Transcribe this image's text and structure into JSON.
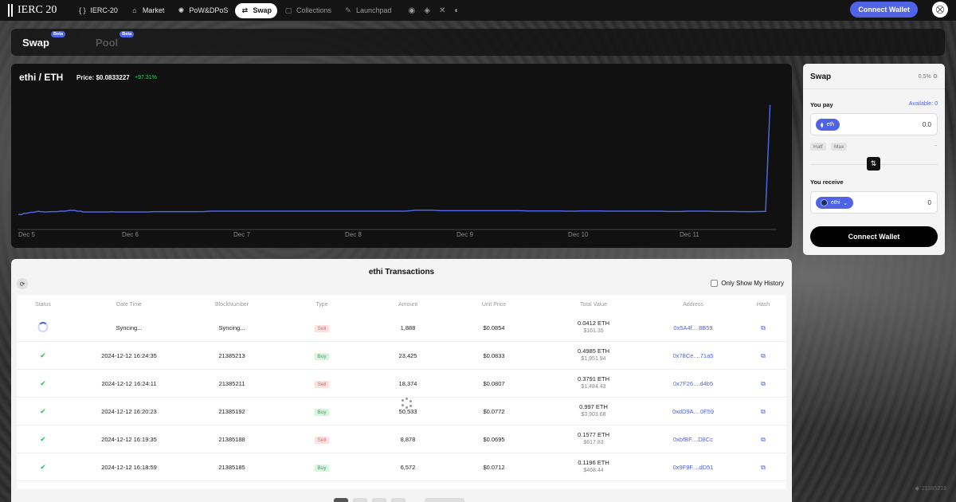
{
  "nav": {
    "logo": "IERC 20",
    "items": [
      {
        "icon": "{ }",
        "label": "IERC-20"
      },
      {
        "icon": "⌂",
        "label": "Market"
      },
      {
        "icon": "✺",
        "label": "PoW&DPoS"
      },
      {
        "icon": "⇄",
        "label": "Swap"
      },
      {
        "icon": "▢",
        "label": "Collections"
      },
      {
        "icon": "✎",
        "label": "Launchpad"
      }
    ],
    "connect_label": "Connect Wallet"
  },
  "tabs": {
    "swap": "Swap",
    "pool": "Pool",
    "beta": "Beta"
  },
  "chart": {
    "pair": "ethi / ETH",
    "price": "Price: $0.0833227",
    "change": "+97.31%",
    "line_color": "#4f63e8"
  },
  "chart_data": {
    "type": "line",
    "title": "ethi / ETH",
    "categories": [
      "Dec 5",
      "Dec 6",
      "Dec 7",
      "Dec 8",
      "Dec 9",
      "Dec 10",
      "Dec 11"
    ],
    "x": [
      0,
      0.03,
      0.05,
      0.08,
      0.11,
      0.14,
      0.18,
      0.2,
      0.25,
      0.3,
      0.35,
      0.38,
      0.42,
      0.46,
      0.5,
      0.53,
      0.56,
      0.58,
      0.62,
      0.66,
      0.7,
      0.75,
      0.8,
      0.84,
      0.88,
      0.92,
      0.95,
      0.98,
      1.03,
      1.07,
      1.12,
      1.16,
      1.22,
      1.27,
      1.32,
      1.37,
      1.43,
      1.48,
      1.54,
      1.6,
      1.66,
      1.72,
      1.78,
      1.84,
      1.9,
      1.96,
      2.02,
      2.08,
      2.14,
      2.2,
      2.26,
      2.32,
      2.38,
      2.44,
      2.5,
      2.56,
      2.62,
      2.68,
      2.74,
      2.8,
      2.86,
      2.92,
      2.98,
      3.04,
      3.1,
      3.16,
      3.22,
      3.28,
      3.34,
      3.4,
      3.46,
      3.52,
      3.56,
      3.6,
      3.66,
      3.72,
      3.78,
      3.84,
      3.9,
      3.96,
      4.02,
      4.08,
      4.14,
      4.2,
      4.26,
      4.32,
      4.38,
      4.44,
      4.5,
      4.56,
      4.62,
      4.68,
      4.74,
      4.8,
      4.86,
      4.92,
      4.98,
      5.04,
      5.1,
      5.16,
      5.22,
      5.28,
      5.34,
      5.4,
      5.46,
      5.52,
      5.58,
      5.64,
      5.7,
      5.76,
      5.82,
      5.88,
      5.94,
      6.0,
      6.06,
      6.12,
      6.18,
      6.24,
      6.3,
      6.36,
      6.42,
      6.48,
      6.54,
      6.6,
      6.66,
      6.7,
      6.74
    ],
    "series": [
      {
        "values": [
          0.0408,
          0.0408,
          0.0413,
          0.0413,
          0.0417,
          0.0417,
          0.0421,
          0.0419,
          0.0418,
          0.0419,
          0.0419,
          0.0421,
          0.0421,
          0.0424,
          0.0424,
          0.0421,
          0.0421,
          0.0418,
          0.0418,
          0.0418,
          0.0418,
          0.0418,
          0.0418,
          0.0419,
          0.0418,
          0.0418,
          0.0418,
          0.0418,
          0.0418,
          0.0418,
          0.0418,
          0.0418,
          0.0419,
          0.0419,
          0.0419,
          0.0419,
          0.0419,
          0.0419,
          0.0419,
          0.0419,
          0.0419,
          0.0421,
          0.0421,
          0.0421,
          0.0421,
          0.0421,
          0.0421,
          0.0421,
          0.0421,
          0.0421,
          0.0421,
          0.0421,
          0.0421,
          0.0421,
          0.0421,
          0.0421,
          0.0421,
          0.0421,
          0.0421,
          0.0421,
          0.0421,
          0.0421,
          0.0421,
          0.0421,
          0.0421,
          0.0421,
          0.0421,
          0.0421,
          0.0421,
          0.0421,
          0.0421,
          0.0423,
          0.0425,
          0.0425,
          0.0425,
          0.0425,
          0.0423,
          0.0423,
          0.0423,
          0.0423,
          0.0423,
          0.0423,
          0.0423,
          0.0423,
          0.0423,
          0.0423,
          0.0423,
          0.0423,
          0.0423,
          0.0422,
          0.0422,
          0.0422,
          0.0422,
          0.0422,
          0.0422,
          0.0421,
          0.0421,
          0.0422,
          0.0422,
          0.0422,
          0.0422,
          0.0421,
          0.0421,
          0.0421,
          0.0421,
          0.0421,
          0.0421,
          0.0421,
          0.0421,
          0.0421,
          0.042,
          0.042,
          0.042,
          0.0421,
          0.0421,
          0.0421,
          0.0421,
          0.042,
          0.042,
          0.042,
          0.042,
          0.0419,
          0.0419,
          0.0419,
          0.042,
          0.042,
          0.0833
        ]
      }
    ],
    "xlim": [
      0,
      6.8
    ],
    "ylim": [
      0.035,
      0.09
    ],
    "grid": false
  },
  "swap": {
    "title": "Swap",
    "slippage": "0.5%",
    "you_pay": "You pay",
    "available": "Available: 0",
    "pay_token": "eth",
    "pay_value": "0.0",
    "half": "Half",
    "max": "Max",
    "dash": "-",
    "you_receive": "You receive",
    "receive_token": "ethi",
    "receive_value": "0",
    "connect_label": "Connect Wallet"
  },
  "transactions": {
    "title": "ethi Transactions",
    "only_mine": "Only Show My History",
    "headers": [
      "Status",
      "Date Time",
      "BlockNumber",
      "Type",
      "Amount",
      "Unit Price",
      "Total Value",
      "Address",
      "Hash"
    ],
    "rows": [
      {
        "status": "pending",
        "datetime": "Syncing...",
        "block": "Syncing...",
        "type": "Sell",
        "amount": "1,888",
        "unit_price": "$0.0854",
        "total_eth": "0.0412 ETH",
        "total_usd": "$161.35",
        "address": "0x5A4f....8B59"
      },
      {
        "status": "done",
        "datetime": "2024-12-12 16:24:35",
        "block": "21385213",
        "type": "Buy",
        "amount": "23,425",
        "unit_price": "$0.0833",
        "total_eth": "0.4985 ETH",
        "total_usd": "$1,951.94",
        "address": "0x78Ce....71a5"
      },
      {
        "status": "done",
        "datetime": "2024-12-12 16:24:11",
        "block": "21385211",
        "type": "Sell",
        "amount": "18,374",
        "unit_price": "$0.0807",
        "total_eth": "0.3791 ETH",
        "total_usd": "$1,484.43",
        "address": "0x7F26....d4b5"
      },
      {
        "status": "done",
        "datetime": "2024-12-12 16:20:23",
        "block": "21385192",
        "type": "Buy",
        "amount": "50,533",
        "unit_price": "$0.0772",
        "total_eth": "0.997 ETH",
        "total_usd": "$3,903.68",
        "address": "0xdD9A....0F59"
      },
      {
        "status": "done",
        "datetime": "2024-12-12 16:19:35",
        "block": "21385188",
        "type": "Sell",
        "amount": "8,878",
        "unit_price": "$0.0695",
        "total_eth": "0.1577 ETH",
        "total_usd": "$617.83",
        "address": "0xbfBF....D8Cc"
      },
      {
        "status": "done",
        "datetime": "2024-12-12 16:18:59",
        "block": "21385185",
        "type": "Buy",
        "amount": "6,572",
        "unit_price": "$0.0712",
        "total_eth": "0.1196 ETH",
        "total_usd": "$468.44",
        "address": "0x9F9F....dD51"
      }
    ]
  },
  "footer": {
    "block_number": "21385218"
  }
}
